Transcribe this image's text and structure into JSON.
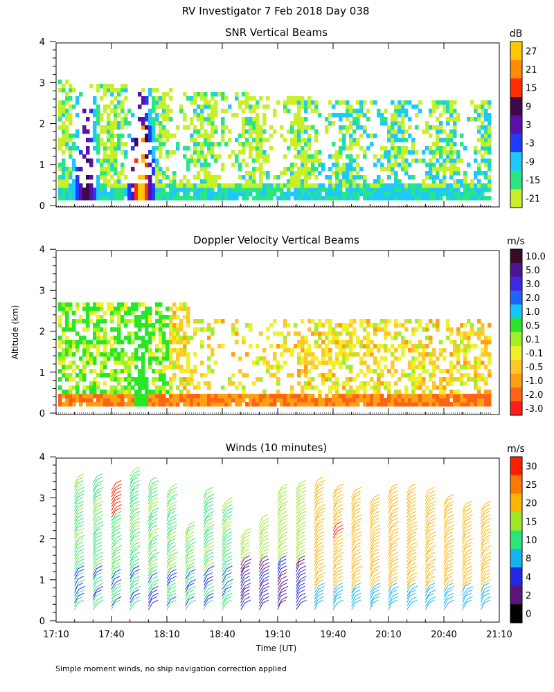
{
  "header": {
    "title": "RV Investigator   7 Feb 2018 Day 038"
  },
  "footnote": "Simple moment winds, no ship navigation correction applied",
  "colors": {
    "frame": "#000000",
    "background": "#ffffff"
  },
  "chart_data": [
    {
      "type": "heatmap",
      "title": "SNR Vertical Beams",
      "ylabel": "",
      "xlabel": "",
      "x_ticks": [
        "17:10",
        "17:40",
        "18:10",
        "18:40",
        "19:10",
        "19:40",
        "20:10",
        "20:40",
        "21:10"
      ],
      "x_range_hours": [
        17.1667,
        21.1667
      ],
      "ylim": [
        0,
        4
      ],
      "y_ticks": [
        "0",
        "1",
        "2",
        "3",
        "4"
      ],
      "colorbar": {
        "unit": "dB",
        "labels": [
          "27",
          "21",
          "15",
          "9",
          "3",
          "-3",
          "-9",
          "-15",
          "-21"
        ],
        "colors": [
          "#ffc800",
          "#ff8c00",
          "#ff2d00",
          "#3c0a4a",
          "#5a10a8",
          "#1e3cff",
          "#1ec8ff",
          "#28e682",
          "#c8f028"
        ]
      },
      "cloud_top_km": 2.4,
      "features": [
        {
          "time": "17:25",
          "hours": 17.42,
          "top_km": 2.5,
          "peak": "9"
        },
        {
          "time": "17:55",
          "hours": 17.92,
          "top_km": 2.6,
          "peak": "27"
        }
      ]
    },
    {
      "type": "heatmap",
      "title": "Doppler Velocity Vertical Beams",
      "ylabel": "Altitude (km)",
      "xlabel": "",
      "x_ticks": [
        "17:10",
        "17:40",
        "18:10",
        "18:40",
        "19:10",
        "19:40",
        "20:10",
        "20:40",
        "21:10"
      ],
      "ylim": [
        0,
        4
      ],
      "y_ticks": [
        "0",
        "1",
        "2",
        "3",
        "4"
      ],
      "colorbar": {
        "unit": "m/s",
        "labels": [
          "10.0",
          "5.0",
          "3.0",
          "2.0",
          "1.0",
          "0.5",
          "0.1",
          "-0.1",
          "-0.5",
          "-1.0",
          "-2.0",
          "-3.0"
        ],
        "colors": [
          "#3c0a28",
          "#4b1496",
          "#3c28e6",
          "#1e64ff",
          "#14c8ff",
          "#28e628",
          "#a0f028",
          "#f0f028",
          "#ffc828",
          "#ffa014",
          "#ff6414",
          "#ff1e1e"
        ]
      },
      "typical_range": [
        "-0.5",
        "0.5"
      ]
    },
    {
      "type": "wind-barbs",
      "title": "Winds (10 minutes)",
      "ylabel": "",
      "xlabel": "Time (UT)",
      "x_ticks": [
        "17:10",
        "17:40",
        "18:10",
        "18:40",
        "19:10",
        "19:40",
        "20:10",
        "20:40",
        "21:10"
      ],
      "ylim": [
        0,
        4
      ],
      "y_ticks": [
        "0",
        "1",
        "2",
        "3",
        "4"
      ],
      "colorbar": {
        "unit": "m/s",
        "labels": [
          "30",
          "25",
          "20",
          "15",
          "10",
          "8",
          "4",
          "2",
          "0"
        ],
        "colors": [
          "#ff1e00",
          "#ff7800",
          "#ffb400",
          "#a0e628",
          "#28e678",
          "#14b4f0",
          "#1e28e6",
          "#5a147a",
          "#000000"
        ]
      },
      "profile_times": [
        "17:20",
        "17:30",
        "17:40",
        "17:50",
        "18:00",
        "18:10",
        "18:20",
        "18:30",
        "18:40",
        "18:50",
        "19:00",
        "19:10",
        "19:20",
        "19:30",
        "19:40",
        "19:50",
        "20:00",
        "20:10",
        "20:20",
        "20:30",
        "20:40",
        "20:50",
        "21:00"
      ],
      "profile_tops_km": [
        3.2,
        3.2,
        3.0,
        3.3,
        3.1,
        2.9,
        2.0,
        2.8,
        2.6,
        1.8,
        2.2,
        2.9,
        3.0,
        3.1,
        2.9,
        2.8,
        2.7,
        2.9,
        2.9,
        2.8,
        2.7,
        2.5,
        2.5
      ]
    }
  ]
}
